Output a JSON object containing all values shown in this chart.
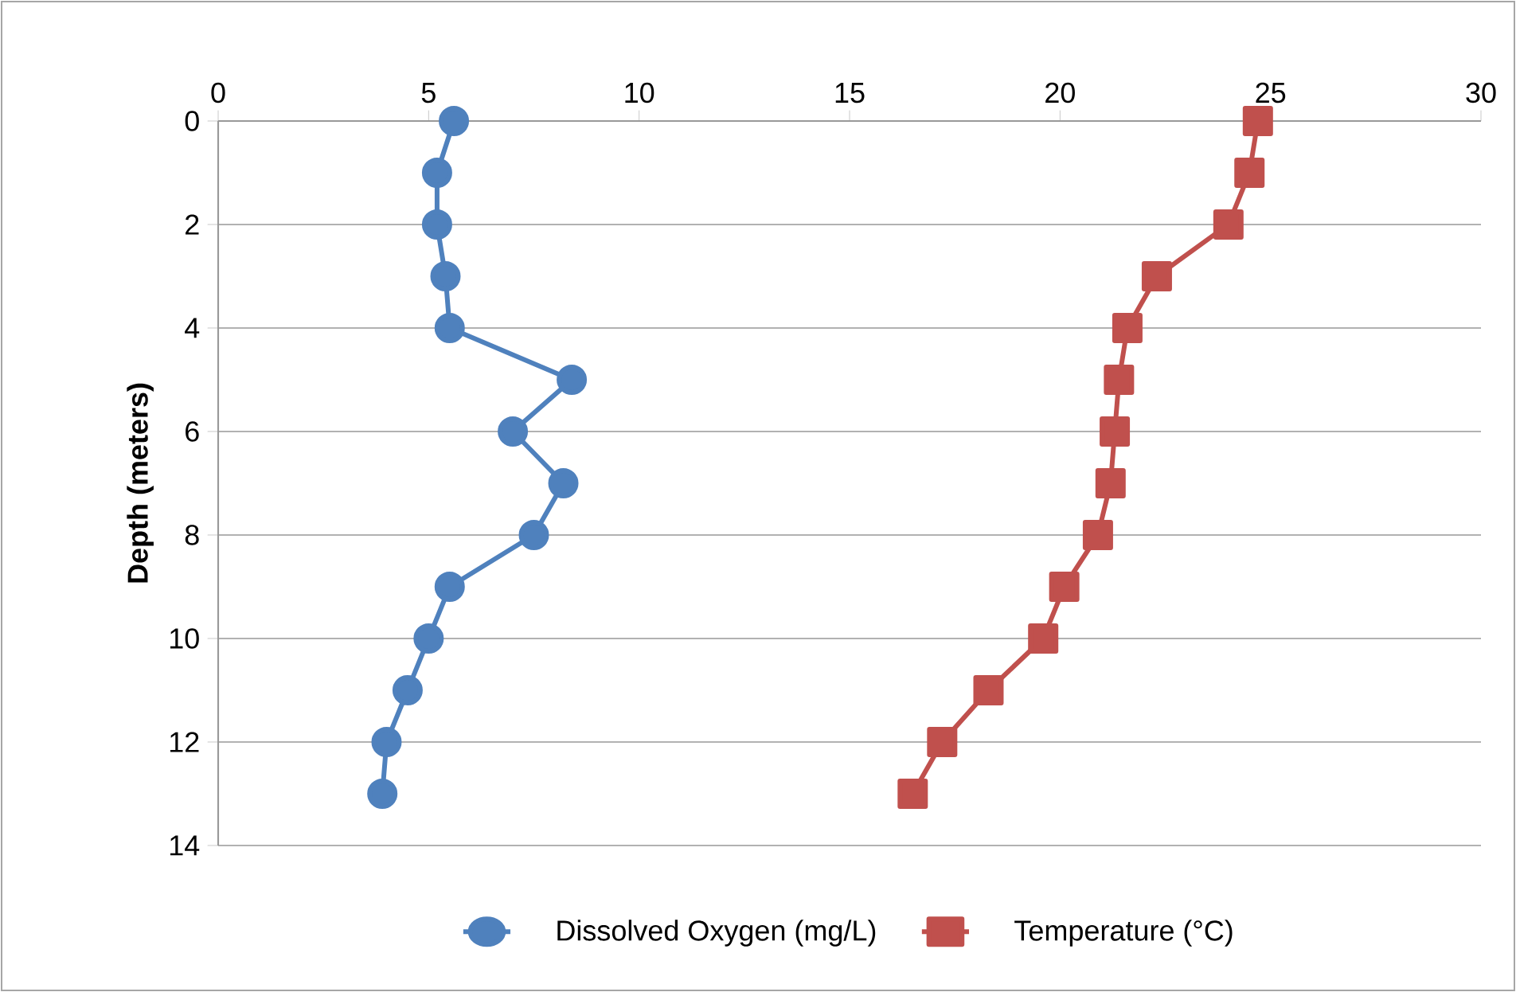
{
  "chart_data": {
    "type": "line",
    "ylabel": "Depth (meters)",
    "xlim": [
      0,
      30
    ],
    "xticks": [
      0,
      5,
      10,
      15,
      20,
      25,
      30
    ],
    "ylim": [
      14,
      0
    ],
    "yticks": [
      0,
      2,
      4,
      6,
      8,
      10,
      12,
      14
    ],
    "grid": "y",
    "legend": "bottom",
    "line_style": "solid",
    "series": [
      {
        "name": "Dissolved Oxygen (mg/L)",
        "color": "#4f81bd",
        "marker": "circle",
        "x": [
          5.6,
          5.2,
          5.2,
          5.4,
          5.5,
          8.4,
          7.0,
          8.2,
          7.5,
          5.5,
          5.0,
          4.5,
          4.0,
          3.9
        ],
        "values": [
          0,
          1,
          2,
          3,
          4,
          5,
          6,
          7,
          8,
          9,
          10,
          11,
          12,
          13
        ]
      },
      {
        "name": "Temperature (°C)",
        "color": "#c0504d",
        "marker": "square",
        "x": [
          24.7,
          24.5,
          24.0,
          22.3,
          21.6,
          21.4,
          21.3,
          21.2,
          20.9,
          20.1,
          19.6,
          18.3,
          17.2,
          16.5
        ],
        "values": [
          0,
          1,
          2,
          3,
          4,
          5,
          6,
          7,
          8,
          9,
          10,
          11,
          12,
          13
        ]
      }
    ]
  }
}
